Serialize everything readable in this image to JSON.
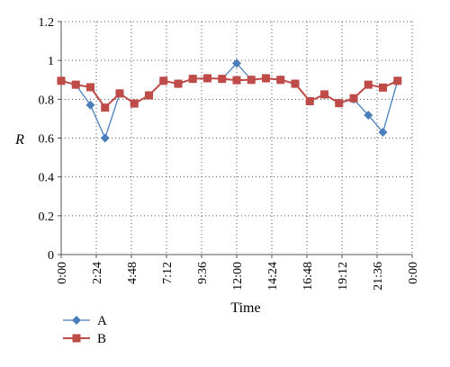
{
  "chart_data": {
    "type": "line",
    "title": "",
    "xlabel": "Time",
    "ylabel": "R",
    "ylim": [
      0,
      1.2
    ],
    "yticks": [
      "0",
      "0.2",
      "0.4",
      "0.6",
      "0.8",
      "1",
      "1.2"
    ],
    "xlim": [
      0,
      24
    ],
    "xticks": [
      "0:00",
      "2:24",
      "4:48",
      "7:12",
      "9:36",
      "12:00",
      "14:24",
      "16:48",
      "19:12",
      "21:36",
      "0:00"
    ],
    "grid": true,
    "legend": "bottom-left",
    "x_hours": [
      0,
      1,
      2,
      3,
      4,
      5,
      6,
      7,
      8,
      9,
      10,
      11,
      12,
      13,
      14,
      15,
      16,
      17,
      18,
      19,
      20,
      21,
      22,
      23
    ],
    "series": [
      {
        "name": "A",
        "color": "#4A7EBB",
        "marker": "diamond",
        "values": [
          0.895,
          0.875,
          0.77,
          0.6,
          0.83,
          0.778,
          0.82,
          0.895,
          0.88,
          0.905,
          0.908,
          0.905,
          0.985,
          0.9,
          0.908,
          0.9,
          0.88,
          0.79,
          0.825,
          0.78,
          0.8,
          0.718,
          0.63,
          0.895
        ]
      },
      {
        "name": "B",
        "color": "#BE4B48",
        "marker": "square",
        "values": [
          0.895,
          0.875,
          0.862,
          0.757,
          0.83,
          0.778,
          0.82,
          0.895,
          0.88,
          0.905,
          0.908,
          0.905,
          0.898,
          0.9,
          0.908,
          0.9,
          0.88,
          0.79,
          0.825,
          0.78,
          0.805,
          0.875,
          0.86,
          0.895
        ]
      }
    ]
  }
}
